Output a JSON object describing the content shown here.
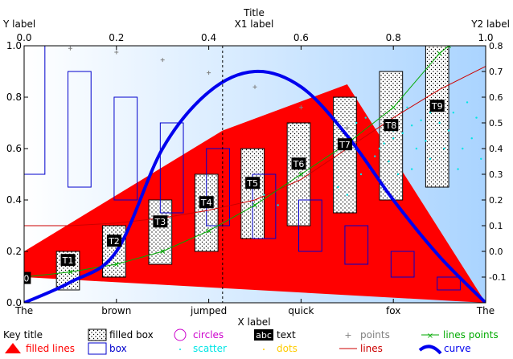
{
  "chart_data": {
    "type": "mixed",
    "title": "Title",
    "x1label": "X1 label",
    "xlabel": "X label",
    "ylabel": "Y label",
    "y2label": "Y2 label",
    "xlim": [
      0,
      1
    ],
    "ylim": [
      0,
      1
    ],
    "y2lim": [
      -0.2,
      0.8
    ],
    "grid": false,
    "legend_position": "bottom",
    "x1_ticks": [
      "0.0",
      "0.2",
      "0.4",
      "0.6",
      "0.8",
      "1.0"
    ],
    "y_ticks": [
      "0.0",
      "0.2",
      "0.4",
      "0.6",
      "0.8",
      "1.0"
    ],
    "y2_ticks": [
      "-0.1",
      "0.0",
      "0.1",
      "0.2",
      "0.3",
      "0.4",
      "0.5",
      "0.6",
      "0.7",
      "0.8"
    ],
    "x_categories": [
      "The",
      "brown",
      "jumped",
      "quick",
      "fox",
      "The"
    ],
    "dashed_vline_x": 0.43,
    "background_gradient": [
      "#ffffff",
      "#aad4ff"
    ],
    "filled_lines": {
      "name": "filled lines",
      "color": "#ff0000",
      "points": [
        [
          0.0,
          0.2
        ],
        [
          0.43,
          0.67
        ],
        [
          0.7,
          0.85
        ],
        [
          1.0,
          0.0
        ],
        [
          0.0,
          0.1
        ]
      ]
    },
    "filled_boxes": {
      "name": "filled box",
      "items": [
        {
          "x0": 0.07,
          "x1": 0.12,
          "y0": 0.05,
          "y1": 0.2
        },
        {
          "x0": 0.17,
          "x1": 0.22,
          "y0": 0.1,
          "y1": 0.3
        },
        {
          "x0": 0.27,
          "x1": 0.32,
          "y0": 0.15,
          "y1": 0.4
        },
        {
          "x0": 0.37,
          "x1": 0.42,
          "y0": 0.2,
          "y1": 0.5
        },
        {
          "x0": 0.47,
          "x1": 0.52,
          "y0": 0.25,
          "y1": 0.6
        },
        {
          "x0": 0.57,
          "x1": 0.62,
          "y0": 0.3,
          "y1": 0.7
        },
        {
          "x0": 0.67,
          "x1": 0.72,
          "y0": 0.35,
          "y1": 0.8
        },
        {
          "x0": 0.77,
          "x1": 0.82,
          "y0": 0.4,
          "y1": 0.9
        },
        {
          "x0": 0.87,
          "x1": 0.92,
          "y0": 0.45,
          "y1": 1.0
        }
      ]
    },
    "boxes": {
      "name": "box",
      "color": "#0000cc",
      "items": [
        {
          "x0": -0.02,
          "x1": 0.045,
          "y0": 0.5,
          "y1": 1.05
        },
        {
          "x0": 0.095,
          "x1": 0.145,
          "y0": 0.45,
          "y1": 0.9
        },
        {
          "x0": 0.195,
          "x1": 0.245,
          "y0": 0.4,
          "y1": 0.8
        },
        {
          "x0": 0.295,
          "x1": 0.345,
          "y0": 0.35,
          "y1": 0.7
        },
        {
          "x0": 0.395,
          "x1": 0.445,
          "y0": 0.3,
          "y1": 0.6
        },
        {
          "x0": 0.495,
          "x1": 0.545,
          "y0": 0.25,
          "y1": 0.5
        },
        {
          "x0": 0.595,
          "x1": 0.645,
          "y0": 0.2,
          "y1": 0.4
        },
        {
          "x0": 0.695,
          "x1": 0.745,
          "y0": 0.15,
          "y1": 0.3
        },
        {
          "x0": 0.795,
          "x1": 0.845,
          "y0": 0.1,
          "y1": 0.2
        },
        {
          "x0": 0.895,
          "x1": 0.945,
          "y0": 0.05,
          "y1": 0.1
        }
      ]
    },
    "text_labels": {
      "name": "text",
      "items": [
        {
          "x": 0.005,
          "y": 0.095,
          "text": "0"
        },
        {
          "x": 0.095,
          "y": 0.165,
          "text": "T1"
        },
        {
          "x": 0.195,
          "y": 0.24,
          "text": "T2"
        },
        {
          "x": 0.295,
          "y": 0.315,
          "text": "T3"
        },
        {
          "x": 0.395,
          "y": 0.39,
          "text": "T4"
        },
        {
          "x": 0.495,
          "y": 0.465,
          "text": "T5"
        },
        {
          "x": 0.595,
          "y": 0.54,
          "text": "T6"
        },
        {
          "x": 0.695,
          "y": 0.615,
          "text": "T7"
        },
        {
          "x": 0.795,
          "y": 0.69,
          "text": "T8"
        },
        {
          "x": 0.895,
          "y": 0.765,
          "text": "T9"
        }
      ]
    },
    "points": {
      "name": "points",
      "color": "#808080",
      "items": [
        [
          0.1,
          0.99
        ],
        [
          0.2,
          0.975
        ],
        [
          0.3,
          0.945
        ],
        [
          0.4,
          0.895
        ],
        [
          0.5,
          0.84
        ],
        [
          0.6,
          0.76
        ],
        [
          0.7,
          0.68
        ]
      ]
    },
    "lines": {
      "name": "lines",
      "color": "#cc0000",
      "y_axis": "y2",
      "points": [
        [
          0.0,
          0.1
        ],
        [
          0.1,
          0.1
        ],
        [
          0.2,
          0.11
        ],
        [
          0.3,
          0.13
        ],
        [
          0.4,
          0.16
        ],
        [
          0.5,
          0.2
        ],
        [
          0.6,
          0.28
        ],
        [
          0.7,
          0.4
        ],
        [
          0.8,
          0.52
        ],
        [
          0.9,
          0.63
        ],
        [
          1.0,
          0.72
        ]
      ]
    },
    "lines_points": {
      "name": "lines points",
      "color": "#00aa00",
      "points": [
        [
          0.0,
          0.1
        ],
        [
          0.1,
          0.12
        ],
        [
          0.2,
          0.15
        ],
        [
          0.3,
          0.2
        ],
        [
          0.4,
          0.28
        ],
        [
          0.5,
          0.38
        ],
        [
          0.6,
          0.5
        ],
        [
          0.7,
          0.62
        ],
        [
          0.8,
          0.76
        ],
        [
          0.9,
          0.97
        ],
        [
          0.92,
          1.0
        ]
      ]
    },
    "curve": {
      "name": "curve",
      "color": "#0000ee",
      "y_axis": "y2",
      "points": [
        [
          0.0,
          -0.2
        ],
        [
          0.1,
          -0.12
        ],
        [
          0.2,
          0.0
        ],
        [
          0.3,
          0.4
        ],
        [
          0.4,
          0.62
        ],
        [
          0.5,
          0.7
        ],
        [
          0.6,
          0.64
        ],
        [
          0.7,
          0.45
        ],
        [
          0.8,
          0.2
        ],
        [
          0.9,
          -0.02
        ],
        [
          1.0,
          -0.2
        ]
      ]
    },
    "scatter": {
      "name": "scatter",
      "color": "#00e5e5",
      "items": [
        [
          0.9,
          0.78
        ],
        [
          0.88,
          0.74
        ],
        [
          0.86,
          0.71
        ],
        [
          0.84,
          0.69
        ],
        [
          0.82,
          0.66
        ],
        [
          0.8,
          0.64
        ],
        [
          0.78,
          0.62
        ],
        [
          0.77,
          0.6
        ],
        [
          0.76,
          0.57
        ],
        [
          0.9,
          0.7
        ],
        [
          0.92,
          0.67
        ],
        [
          0.95,
          0.6
        ],
        [
          0.97,
          0.64
        ],
        [
          0.99,
          0.56
        ],
        [
          0.85,
          0.6
        ],
        [
          0.8,
          0.67
        ],
        [
          0.83,
          0.76
        ],
        [
          0.88,
          0.56
        ],
        [
          0.93,
          0.74
        ],
        [
          0.74,
          0.72
        ],
        [
          0.72,
          0.7
        ],
        [
          0.7,
          0.42
        ],
        [
          0.75,
          0.52
        ],
        [
          0.96,
          0.78
        ],
        [
          0.98,
          0.72
        ],
        [
          0.52,
          0.42
        ],
        [
          0.55,
          0.38
        ],
        [
          0.68,
          0.45
        ],
        [
          0.73,
          0.5
        ],
        [
          0.79,
          0.55
        ],
        [
          0.87,
          0.63
        ],
        [
          0.91,
          0.6
        ],
        [
          0.94,
          0.52
        ],
        [
          0.81,
          0.5
        ],
        [
          0.84,
          0.52
        ]
      ]
    },
    "dots": {
      "name": "dots",
      "color": "#ffcc00"
    },
    "circles": {
      "name": "circles",
      "color": "#cc00cc"
    },
    "legend": {
      "title": "Key title",
      "entries": [
        {
          "label": "filled box"
        },
        {
          "label": "circles"
        },
        {
          "label": "text",
          "sample": "abc"
        },
        {
          "label": "points"
        },
        {
          "label": "lines points"
        },
        {
          "label": "filled lines"
        },
        {
          "label": "box"
        },
        {
          "label": "scatter"
        },
        {
          "label": "dots"
        },
        {
          "label": "lines"
        },
        {
          "label": "curve"
        }
      ]
    }
  }
}
